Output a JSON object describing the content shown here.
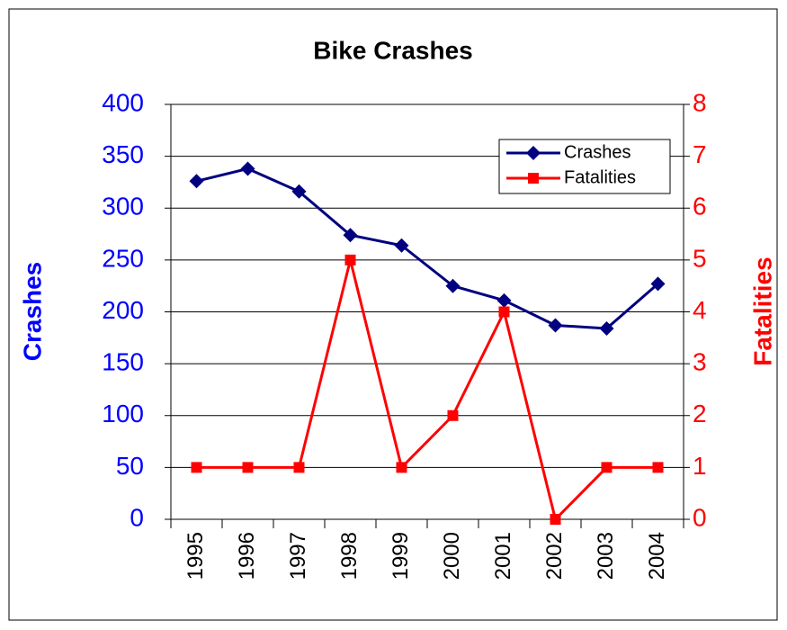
{
  "chart_data": {
    "type": "line",
    "title": "Bike Crashes",
    "categories": [
      "1995",
      "1996",
      "1997",
      "1998",
      "1999",
      "2000",
      "2001",
      "2002",
      "2003",
      "2004"
    ],
    "series": [
      {
        "name": "Crashes",
        "color": "#000080",
        "marker": "diamond",
        "values": [
          326,
          338,
          316,
          274,
          264,
          225,
          211,
          187,
          184,
          227
        ]
      },
      {
        "name": "Fatalities",
        "color": "#ff0000",
        "marker": "square",
        "axis": "y2",
        "values": [
          1,
          1,
          1,
          5,
          1,
          2,
          4,
          0,
          1,
          1
        ]
      }
    ],
    "ylabel": "Crashes",
    "y2label": "Fatalities",
    "ylim": [
      0,
      400
    ],
    "yticks": [
      0,
      50,
      100,
      150,
      200,
      250,
      300,
      350,
      400
    ],
    "y2lim": [
      0,
      8
    ],
    "y2ticks": [
      0,
      1,
      2,
      3,
      4,
      5,
      6,
      7,
      8
    ],
    "ycolor": "#0000ff",
    "y2color": "#ff0000",
    "grid": true,
    "legend": "upper right"
  }
}
